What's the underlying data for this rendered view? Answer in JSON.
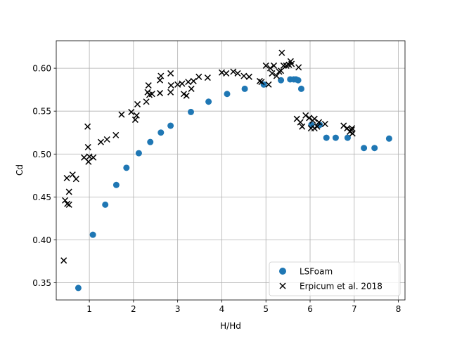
{
  "chart_data": {
    "type": "scatter",
    "title": "",
    "xlabel": "H/Hd",
    "ylabel": "Cd",
    "xlim": [
      0.25,
      8.15
    ],
    "ylim": [
      0.33,
      0.632
    ],
    "xticks": [
      1,
      2,
      3,
      4,
      5,
      6,
      7,
      8
    ],
    "yticks": [
      0.35,
      0.4,
      0.45,
      0.5,
      0.55,
      0.6
    ],
    "xtick_labels": [
      "1",
      "2",
      "3",
      "4",
      "5",
      "6",
      "7",
      "8"
    ],
    "ytick_labels": [
      "0.35",
      "0.40",
      "0.45",
      "0.50",
      "0.55",
      "0.60"
    ],
    "grid": true,
    "legend_position": "lower-right",
    "series": [
      {
        "name": "LSFoam",
        "marker": "circle",
        "color": "#1f77b4",
        "points": [
          [
            0.75,
            0.344
          ],
          [
            1.08,
            0.406
          ],
          [
            1.36,
            0.441
          ],
          [
            1.61,
            0.464
          ],
          [
            1.84,
            0.484
          ],
          [
            2.12,
            0.501
          ],
          [
            2.38,
            0.514
          ],
          [
            2.62,
            0.525
          ],
          [
            2.84,
            0.533
          ],
          [
            3.3,
            0.549
          ],
          [
            3.7,
            0.561
          ],
          [
            4.12,
            0.57
          ],
          [
            4.52,
            0.576
          ],
          [
            4.95,
            0.581
          ],
          [
            5.34,
            0.586
          ],
          [
            5.55,
            0.587
          ],
          [
            5.63,
            0.587
          ],
          [
            5.68,
            0.587
          ],
          [
            5.73,
            0.586
          ],
          [
            5.8,
            0.576
          ],
          [
            6.03,
            0.534
          ],
          [
            6.22,
            0.534
          ],
          [
            6.37,
            0.519
          ],
          [
            6.58,
            0.519
          ],
          [
            6.85,
            0.519
          ],
          [
            7.22,
            0.507
          ],
          [
            7.46,
            0.507
          ],
          [
            7.79,
            0.518
          ]
        ]
      },
      {
        "name": "Erpicum et al. 2018",
        "marker": "x",
        "color": "#000000",
        "points": [
          [
            0.42,
            0.376
          ],
          [
            0.45,
            0.446
          ],
          [
            0.49,
            0.472
          ],
          [
            0.5,
            0.442
          ],
          [
            0.54,
            0.441
          ],
          [
            0.54,
            0.456
          ],
          [
            0.62,
            0.476
          ],
          [
            0.7,
            0.471
          ],
          [
            0.88,
            0.496
          ],
          [
            0.96,
            0.532
          ],
          [
            0.97,
            0.508
          ],
          [
            0.98,
            0.491
          ],
          [
            1.0,
            0.497
          ],
          [
            1.09,
            0.496
          ],
          [
            1.26,
            0.514
          ],
          [
            1.4,
            0.517
          ],
          [
            1.6,
            0.522
          ],
          [
            1.73,
            0.546
          ],
          [
            1.95,
            0.549
          ],
          [
            2.04,
            0.54
          ],
          [
            2.07,
            0.545
          ],
          [
            2.09,
            0.558
          ],
          [
            2.29,
            0.561
          ],
          [
            2.32,
            0.572
          ],
          [
            2.34,
            0.58
          ],
          [
            2.36,
            0.569
          ],
          [
            2.42,
            0.57
          ],
          [
            2.6,
            0.571
          ],
          [
            2.6,
            0.586
          ],
          [
            2.62,
            0.591
          ],
          [
            2.84,
            0.572
          ],
          [
            2.85,
            0.58
          ],
          [
            2.84,
            0.594
          ],
          [
            3.0,
            0.581
          ],
          [
            3.1,
            0.582
          ],
          [
            3.14,
            0.57
          ],
          [
            3.2,
            0.568
          ],
          [
            3.24,
            0.584
          ],
          [
            3.31,
            0.576
          ],
          [
            3.36,
            0.585
          ],
          [
            3.48,
            0.59
          ],
          [
            3.68,
            0.589
          ],
          [
            4.0,
            0.595
          ],
          [
            4.1,
            0.594
          ],
          [
            4.26,
            0.596
          ],
          [
            4.36,
            0.594
          ],
          [
            4.5,
            0.591
          ],
          [
            4.62,
            0.59
          ],
          [
            4.86,
            0.585
          ],
          [
            4.9,
            0.584
          ],
          [
            5.0,
            0.603
          ],
          [
            5.06,
            0.581
          ],
          [
            5.1,
            0.6
          ],
          [
            5.14,
            0.594
          ],
          [
            5.18,
            0.603
          ],
          [
            5.24,
            0.591
          ],
          [
            5.3,
            0.596
          ],
          [
            5.34,
            0.597
          ],
          [
            5.36,
            0.618
          ],
          [
            5.4,
            0.603
          ],
          [
            5.46,
            0.603
          ],
          [
            5.52,
            0.604
          ],
          [
            5.56,
            0.608
          ],
          [
            5.58,
            0.605
          ],
          [
            5.7,
            0.541
          ],
          [
            5.74,
            0.601
          ],
          [
            5.78,
            0.537
          ],
          [
            5.82,
            0.532
          ],
          [
            5.9,
            0.545
          ],
          [
            5.98,
            0.542
          ],
          [
            6.02,
            0.53
          ],
          [
            6.06,
            0.539
          ],
          [
            6.1,
            0.541
          ],
          [
            6.1,
            0.53
          ],
          [
            6.16,
            0.532
          ],
          [
            6.2,
            0.537
          ],
          [
            6.34,
            0.535
          ],
          [
            6.76,
            0.533
          ],
          [
            6.84,
            0.53
          ],
          [
            6.9,
            0.526
          ],
          [
            6.94,
            0.528
          ],
          [
            6.95,
            0.53
          ],
          [
            6.96,
            0.524
          ]
        ]
      }
    ]
  }
}
